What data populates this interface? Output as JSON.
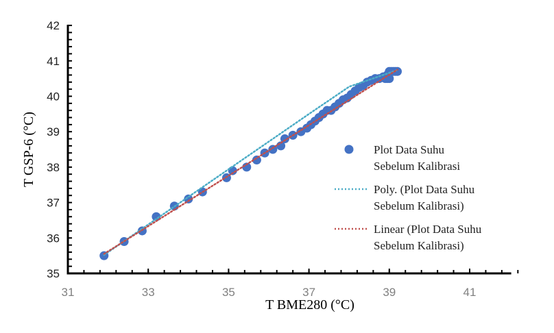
{
  "chart_data": {
    "type": "scatter",
    "title": "",
    "xlabel": "T BME280 (°C)",
    "ylabel": "T GSP-6 (°C)",
    "xlim": [
      31,
      42
    ],
    "ylim": [
      35,
      42
    ],
    "x_ticks": [
      31,
      33,
      35,
      37,
      39,
      41
    ],
    "y_ticks": [
      35,
      36,
      37,
      38,
      39,
      40,
      41,
      42
    ],
    "x_minor_step": 0.4,
    "y_minor_step": 0.2,
    "grid": false,
    "legend_position": "right-inside",
    "series": [
      {
        "name": "Plot Data Suhu Sebelum Kalibrasi",
        "kind": "markers",
        "color": "#4472C4",
        "x": [
          31.9,
          32.4,
          32.85,
          33.2,
          33.65,
          34.0,
          34.35,
          34.95,
          35.1,
          35.45,
          35.7,
          35.9,
          36.1,
          36.3,
          36.4,
          36.6,
          36.8,
          36.95,
          37.05,
          37.15,
          37.25,
          37.35,
          37.45,
          37.55,
          37.65,
          37.75,
          37.85,
          37.95,
          38.05,
          38.15,
          38.25,
          38.35,
          38.45,
          38.55,
          38.65,
          38.75,
          38.85,
          38.95,
          39.0,
          39.05,
          39.1,
          39.15,
          39.2,
          38.9,
          38.95,
          39.0
        ],
        "y": [
          35.5,
          35.9,
          36.2,
          36.6,
          36.9,
          37.1,
          37.3,
          37.7,
          37.9,
          38.0,
          38.2,
          38.4,
          38.5,
          38.6,
          38.8,
          38.9,
          39.0,
          39.1,
          39.2,
          39.3,
          39.4,
          39.5,
          39.6,
          39.6,
          39.7,
          39.8,
          39.9,
          39.95,
          40.05,
          40.15,
          40.25,
          40.3,
          40.4,
          40.45,
          40.5,
          40.5,
          40.55,
          40.6,
          40.7,
          40.7,
          40.7,
          40.7,
          40.7,
          40.5,
          40.5,
          40.5
        ]
      },
      {
        "name": "Poly. (Plot Data Suhu Sebelum Kalibrasi)",
        "kind": "trendline-poly",
        "color": "#4BACC6",
        "x": [
          31.9,
          33.0,
          34.0,
          35.0,
          36.0,
          37.0,
          38.0,
          39.2
        ],
        "y": [
          35.52,
          36.38,
          37.16,
          37.94,
          38.72,
          39.5,
          40.27,
          40.74
        ]
      },
      {
        "name": "Linear (Plot Data Suhu Sebelum Kalibrasi)",
        "kind": "trendline-linear",
        "color": "#C0504D",
        "x": [
          31.9,
          39.2
        ],
        "y": [
          35.55,
          40.75
        ]
      }
    ]
  },
  "axes": {
    "x_title": "T BME280 (°C)",
    "y_title": "T GSP-6 (°C)"
  },
  "legend": {
    "items": [
      {
        "line1": "Plot Data Suhu",
        "line2": "Sebelum Kalibrasi",
        "symbol": "marker",
        "color": "#4472C4"
      },
      {
        "line1": "Poly. (Plot Data Suhu",
        "line2": "Sebelum Kalibrasi)",
        "symbol": "dotted-line",
        "color": "#4BACC6"
      },
      {
        "line1": "Linear (Plot Data Suhu",
        "line2": "Sebelum Kalibrasi)",
        "symbol": "dotted-line",
        "color": "#C0504D"
      }
    ]
  },
  "colors": {
    "axis": "#000000",
    "y_tick_text": "#222222",
    "x_tick_text": "#808080"
  }
}
